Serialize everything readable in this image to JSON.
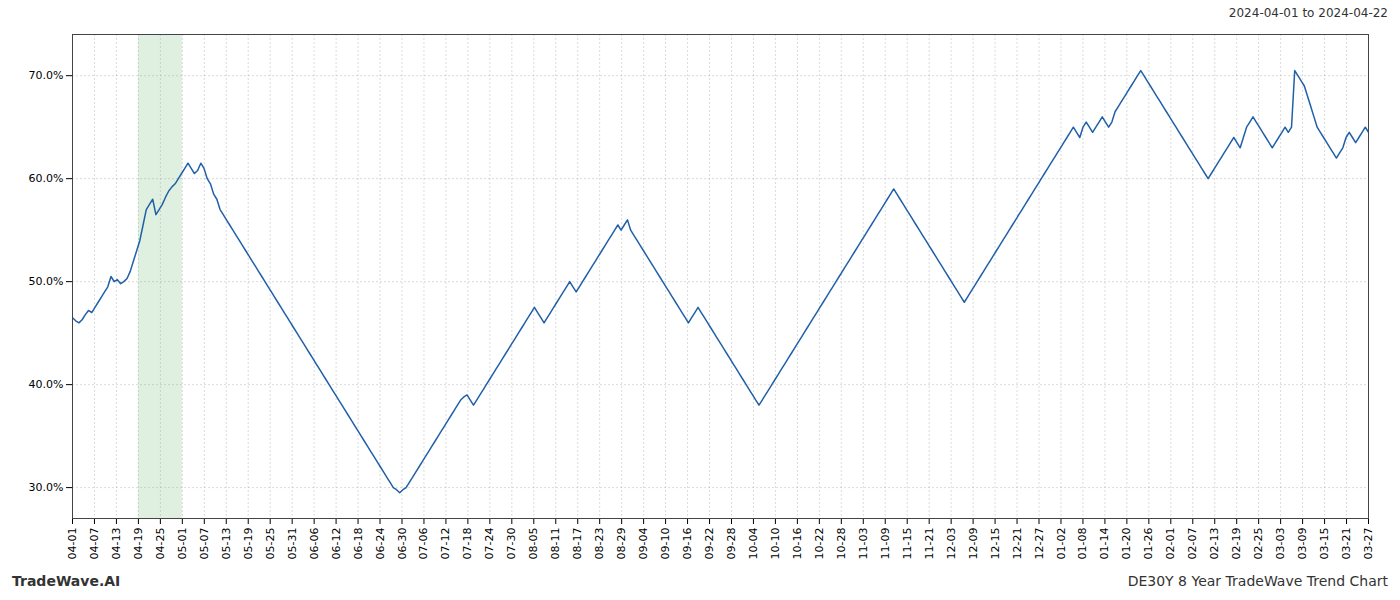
{
  "chart_data": {
    "type": "line",
    "title": "DE30Y 8 Year TradeWave Trend Chart",
    "subtitle": "2024-04-01 to 2024-04-22",
    "annotations": [
      "TradeWave.AI"
    ],
    "color": "#2060a8",
    "grid": true,
    "tick_labels": true,
    "ylim": [
      27.0,
      74.0
    ],
    "yticks": [
      {
        "value": 30.0,
        "label": "30.0%"
      },
      {
        "value": 40.0,
        "label": "40.0%"
      },
      {
        "value": 50.0,
        "label": "50.0%"
      },
      {
        "value": 60.0,
        "label": "60.0%"
      },
      {
        "value": 70.0,
        "label": "70.0%"
      }
    ],
    "xlim": [
      0,
      404
    ],
    "xticks": [
      {
        "value": 0,
        "label": "04-01"
      },
      {
        "value": 6.847,
        "label": "04-07"
      },
      {
        "value": 13.695,
        "label": "04-13"
      },
      {
        "value": 20.542,
        "label": "04-19"
      },
      {
        "value": 27.39,
        "label": "04-25"
      },
      {
        "value": 34.237,
        "label": "05-01"
      },
      {
        "value": 41.085,
        "label": "05-07"
      },
      {
        "value": 47.932,
        "label": "05-13"
      },
      {
        "value": 54.78,
        "label": "05-19"
      },
      {
        "value": 61.627,
        "label": "05-25"
      },
      {
        "value": 68.475,
        "label": "05-31"
      },
      {
        "value": 75.322,
        "label": "06-06"
      },
      {
        "value": 82.169,
        "label": "06-12"
      },
      {
        "value": 89.017,
        "label": "06-18"
      },
      {
        "value": 95.864,
        "label": "06-24"
      },
      {
        "value": 102.712,
        "label": "06-30"
      },
      {
        "value": 109.559,
        "label": "07-06"
      },
      {
        "value": 116.407,
        "label": "07-12"
      },
      {
        "value": 123.254,
        "label": "07-18"
      },
      {
        "value": 130.102,
        "label": "07-24"
      },
      {
        "value": 136.949,
        "label": "07-30"
      },
      {
        "value": 143.797,
        "label": "08-05"
      },
      {
        "value": 150.644,
        "label": "08-11"
      },
      {
        "value": 157.492,
        "label": "08-17"
      },
      {
        "value": 164.339,
        "label": "08-23"
      },
      {
        "value": 171.186,
        "label": "08-29"
      },
      {
        "value": 178.034,
        "label": "09-04"
      },
      {
        "value": 184.881,
        "label": "09-10"
      },
      {
        "value": 191.729,
        "label": "09-16"
      },
      {
        "value": 198.576,
        "label": "09-22"
      },
      {
        "value": 205.424,
        "label": "09-28"
      },
      {
        "value": 212.271,
        "label": "10-04"
      },
      {
        "value": 219.119,
        "label": "10-10"
      },
      {
        "value": 225.966,
        "label": "10-16"
      },
      {
        "value": 232.814,
        "label": "10-22"
      },
      {
        "value": 239.661,
        "label": "10-28"
      },
      {
        "value": 246.508,
        "label": "11-03"
      },
      {
        "value": 253.356,
        "label": "11-09"
      },
      {
        "value": 260.203,
        "label": "11-15"
      },
      {
        "value": 267.051,
        "label": "11-21"
      },
      {
        "value": 273.898,
        "label": "12-03"
      },
      {
        "value": 280.746,
        "label": "12-09"
      },
      {
        "value": 287.593,
        "label": "12-15"
      },
      {
        "value": 294.441,
        "label": "12-21"
      },
      {
        "value": 301.288,
        "label": "12-27"
      },
      {
        "value": 308.136,
        "label": "01-02"
      },
      {
        "value": 314.983,
        "label": "01-08"
      },
      {
        "value": 321.831,
        "label": "01-14"
      },
      {
        "value": 328.678,
        "label": "01-20"
      },
      {
        "value": 335.525,
        "label": "01-26"
      },
      {
        "value": 342.373,
        "label": "02-01"
      },
      {
        "value": 349.22,
        "label": "02-07"
      },
      {
        "value": 356.068,
        "label": "02-13"
      },
      {
        "value": 362.915,
        "label": "02-19"
      },
      {
        "value": 369.763,
        "label": "02-25"
      },
      {
        "value": 376.61,
        "label": "03-03"
      },
      {
        "value": 383.458,
        "label": "03-09"
      },
      {
        "value": 390.305,
        "label": "03-15"
      },
      {
        "value": 397.153,
        "label": "03-21"
      },
      {
        "value": 404,
        "label": "03-27"
      }
    ],
    "highlight": {
      "from": 20.542,
      "to": 34.237,
      "color": "#e0f0e0"
    },
    "values": [
      46.5,
      46.2,
      46.0,
      46.3,
      46.8,
      47.2,
      47.0,
      47.5,
      48.0,
      48.5,
      49.0,
      49.5,
      50.5,
      50.0,
      50.2,
      49.8,
      50.0,
      50.3,
      51.0,
      52.0,
      53.0,
      54.0,
      55.5,
      57.0,
      57.5,
      58.0,
      56.5,
      57.0,
      57.5,
      58.2,
      58.8,
      59.2,
      59.5,
      60.0,
      60.5,
      61.0,
      61.5,
      61.0,
      60.5,
      60.8,
      61.5,
      61.0,
      60.0,
      59.5,
      58.5,
      58.0,
      57.0,
      56.5,
      56.0,
      55.5,
      55.0,
      54.5,
      54.0,
      53.5,
      53.0,
      52.5,
      52.0,
      51.5,
      51.0,
      50.5,
      50.0,
      49.5,
      49.0,
      48.5,
      48.0,
      47.5,
      47.0,
      46.5,
      46.0,
      45.5,
      45.0,
      44.5,
      44.0,
      43.5,
      43.0,
      42.5,
      42.0,
      41.5,
      41.0,
      40.5,
      40.0,
      39.5,
      39.0,
      38.5,
      38.0,
      37.5,
      37.0,
      36.5,
      36.0,
      35.5,
      35.0,
      34.5,
      34.0,
      33.5,
      33.0,
      32.5,
      32.0,
      31.5,
      31.0,
      30.5,
      30.0,
      29.8,
      29.5,
      29.8,
      30.0,
      30.5,
      31.0,
      31.5,
      32.0,
      32.5,
      33.0,
      33.5,
      34.0,
      34.5,
      35.0,
      35.5,
      36.0,
      36.5,
      37.0,
      37.5,
      38.0,
      38.5,
      38.8,
      39.0,
      38.5,
      38.0,
      38.5,
      39.0,
      39.5,
      40.0,
      40.5,
      41.0,
      41.5,
      42.0,
      42.5,
      43.0,
      43.5,
      44.0,
      44.5,
      45.0,
      45.5,
      46.0,
      46.5,
      47.0,
      47.5,
      47.0,
      46.5,
      46.0,
      46.5,
      47.0,
      47.5,
      48.0,
      48.5,
      49.0,
      49.5,
      50.0,
      49.5,
      49.0,
      49.5,
      50.0,
      50.5,
      51.0,
      51.5,
      52.0,
      52.5,
      53.0,
      53.5,
      54.0,
      54.5,
      55.0,
      55.5,
      55.0,
      55.5,
      56.0,
      55.0,
      54.5,
      54.0,
      53.5,
      53.0,
      52.5,
      52.0,
      51.5,
      51.0,
      50.5,
      50.0,
      49.5,
      49.0,
      48.5,
      48.0,
      47.5,
      47.0,
      46.5,
      46.0,
      46.5,
      47.0,
      47.5,
      47.0,
      46.5,
      46.0,
      45.5,
      45.0,
      44.5,
      44.0,
      43.5,
      43.0,
      42.5,
      42.0,
      41.5,
      41.0,
      40.5,
      40.0,
      39.5,
      39.0,
      38.5,
      38.0,
      38.5,
      39.0,
      39.5,
      40.0,
      40.5,
      41.0,
      41.5,
      42.0,
      42.5,
      43.0,
      43.5,
      44.0,
      44.5,
      45.0,
      45.5,
      46.0,
      46.5,
      47.0,
      47.5,
      48.0,
      48.5,
      49.0,
      49.5,
      50.0,
      50.5,
      51.0,
      51.5,
      52.0,
      52.5,
      53.0,
      53.5,
      54.0,
      54.5,
      55.0,
      55.5,
      56.0,
      56.5,
      57.0,
      57.5,
      58.0,
      58.5,
      59.0,
      58.5,
      58.0,
      57.5,
      57.0,
      56.5,
      56.0,
      55.5,
      55.0,
      54.5,
      54.0,
      53.5,
      53.0,
      52.5,
      52.0,
      51.5,
      51.0,
      50.5,
      50.0,
      49.5,
      49.0,
      48.5,
      48.0,
      48.5,
      49.0,
      49.5,
      50.0,
      50.5,
      51.0,
      51.5,
      52.0,
      52.5,
      53.0,
      53.5,
      54.0,
      54.5,
      55.0,
      55.5,
      56.0,
      56.5,
      57.0,
      57.5,
      58.0,
      58.5,
      59.0,
      59.5,
      60.0,
      60.5,
      61.0,
      61.5,
      62.0,
      62.5,
      63.0,
      63.5,
      64.0,
      64.5,
      65.0,
      64.5,
      64.0,
      65.0,
      65.5,
      65.0,
      64.5,
      65.0,
      65.5,
      66.0,
      65.5,
      65.0,
      65.5,
      66.5,
      67.0,
      67.5,
      68.0,
      68.5,
      69.0,
      69.5,
      70.0,
      70.5,
      70.0,
      69.5,
      69.0,
      68.5,
      68.0,
      67.5,
      67.0,
      66.5,
      66.0,
      65.5,
      65.0,
      64.5,
      64.0,
      63.5,
      63.0,
      62.5,
      62.0,
      61.5,
      61.0,
      60.5,
      60.0,
      60.5,
      61.0,
      61.5,
      62.0,
      62.5,
      63.0,
      63.5,
      64.0,
      63.5,
      63.0,
      64.0,
      65.0,
      65.5,
      66.0,
      65.5,
      65.0,
      64.5,
      64.0,
      63.5,
      63.0,
      63.5,
      64.0,
      64.5,
      65.0,
      64.5,
      65.0,
      70.5,
      70.0,
      69.5,
      69.0,
      68.0,
      67.0,
      66.0,
      65.0,
      64.5,
      64.0,
      63.5,
      63.0,
      62.5,
      62.0,
      62.5,
      63.0,
      64.0,
      64.5,
      64.0,
      63.5,
      64.0,
      64.5,
      65.0,
      64.5
    ]
  }
}
